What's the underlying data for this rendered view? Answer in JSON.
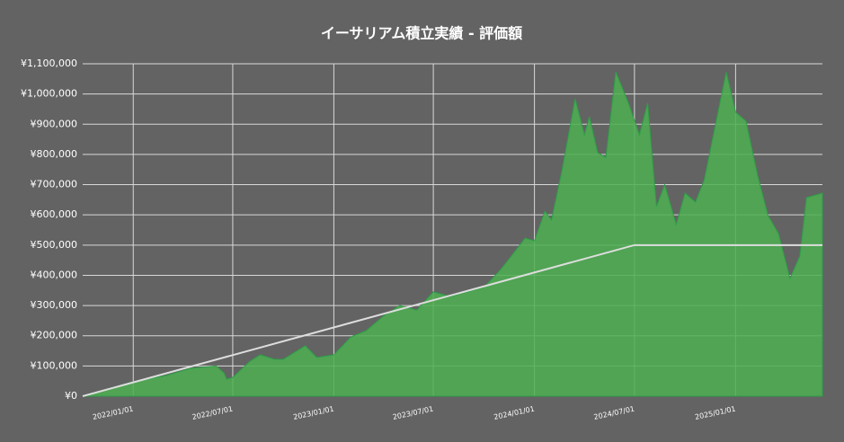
{
  "chart_data": {
    "type": "area",
    "title": "イーサリアム積立実績 - 評価額",
    "x": [
      "2021/10/01",
      "2022/01/01",
      "2022/03/01",
      "2022/04/15",
      "2022/06/01",
      "2022/06/15",
      "2022/06/20",
      "2022/07/01",
      "2022/08/01",
      "2022/08/20",
      "2022/09/15",
      "2022/10/01",
      "2022/11/10",
      "2022/12/01",
      "2023/01/01",
      "2023/02/01",
      "2023/03/01",
      "2023/04/01",
      "2023/05/01",
      "2023/06/01",
      "2023/07/01",
      "2023/08/01",
      "2023/09/01",
      "2023/10/01",
      "2023/11/01",
      "2023/11/20",
      "2023/12/15",
      "2024/01/01",
      "2024/01/20",
      "2024/02/01",
      "2024/02/20",
      "2024/03/15",
      "2024/04/01",
      "2024/04/10",
      "2024/04/25",
      "2024/05/10",
      "2024/05/28",
      "2024/06/20",
      "2024/07/10",
      "2024/07/25",
      "2024/08/10",
      "2024/08/25",
      "2024/09/15",
      "2024/10/01",
      "2024/10/20",
      "2024/11/05",
      "2024/11/25",
      "2024/12/15",
      "2025/01/01",
      "2025/01/20",
      "2025/02/10",
      "2025/03/01",
      "2025/03/20",
      "2025/04/10",
      "2025/04/28",
      "2025/05/10",
      "2025/06/08"
    ],
    "series": [
      {
        "color": "#4caf50",
        "values": [
          0,
          48000,
          68000,
          92000,
          100000,
          77000,
          56000,
          62000,
          115000,
          137000,
          122000,
          122000,
          167000,
          128000,
          137000,
          196000,
          217000,
          265000,
          300000,
          285000,
          345000,
          330000,
          345000,
          360000,
          420000,
          464000,
          523000,
          514000,
          612000,
          583000,
          746000,
          984000,
          865000,
          925000,
          806000,
          790000,
          1073000,
          970000,
          865000,
          970000,
          627000,
          700000,
          568000,
          672000,
          642000,
          716000,
          895000,
          1073000,
          940000,
          910000,
          731000,
          598000,
          538000,
          390000,
          464000,
          657000,
          672000
        ]
      },
      {
        "type": "line",
        "color": "#dddddd",
        "x": [
          "2021/10/01",
          "2024/07/01",
          "2025/06/08"
        ],
        "values": [
          0,
          500000,
          500000
        ]
      }
    ],
    "xlim": [
      "2021/10/01",
      "2025/06/08"
    ],
    "xticks": [
      "2022/01/01",
      "2022/07/01",
      "2023/01/01",
      "2023/07/01",
      "2024/01/01",
      "2024/07/01",
      "2025/01/01"
    ],
    "ylim": [
      0,
      1100000
    ],
    "yticks": [
      {
        "value": 0,
        "label": "¥0"
      },
      {
        "value": 100000,
        "label": "¥100,000"
      },
      {
        "value": 200000,
        "label": "¥200,000"
      },
      {
        "value": 300000,
        "label": "¥300,000"
      },
      {
        "value": 400000,
        "label": "¥400,000"
      },
      {
        "value": 500000,
        "label": "¥500,000"
      },
      {
        "value": 600000,
        "label": "¥600,000"
      },
      {
        "value": 700000,
        "label": "¥700,000"
      },
      {
        "value": 800000,
        "label": "¥800,000"
      },
      {
        "value": 900000,
        "label": "¥900,000"
      },
      {
        "value": 1000000,
        "label": "¥1,000,000"
      },
      {
        "value": 1100000,
        "label": "¥1,100,000"
      }
    ],
    "grid": true
  }
}
